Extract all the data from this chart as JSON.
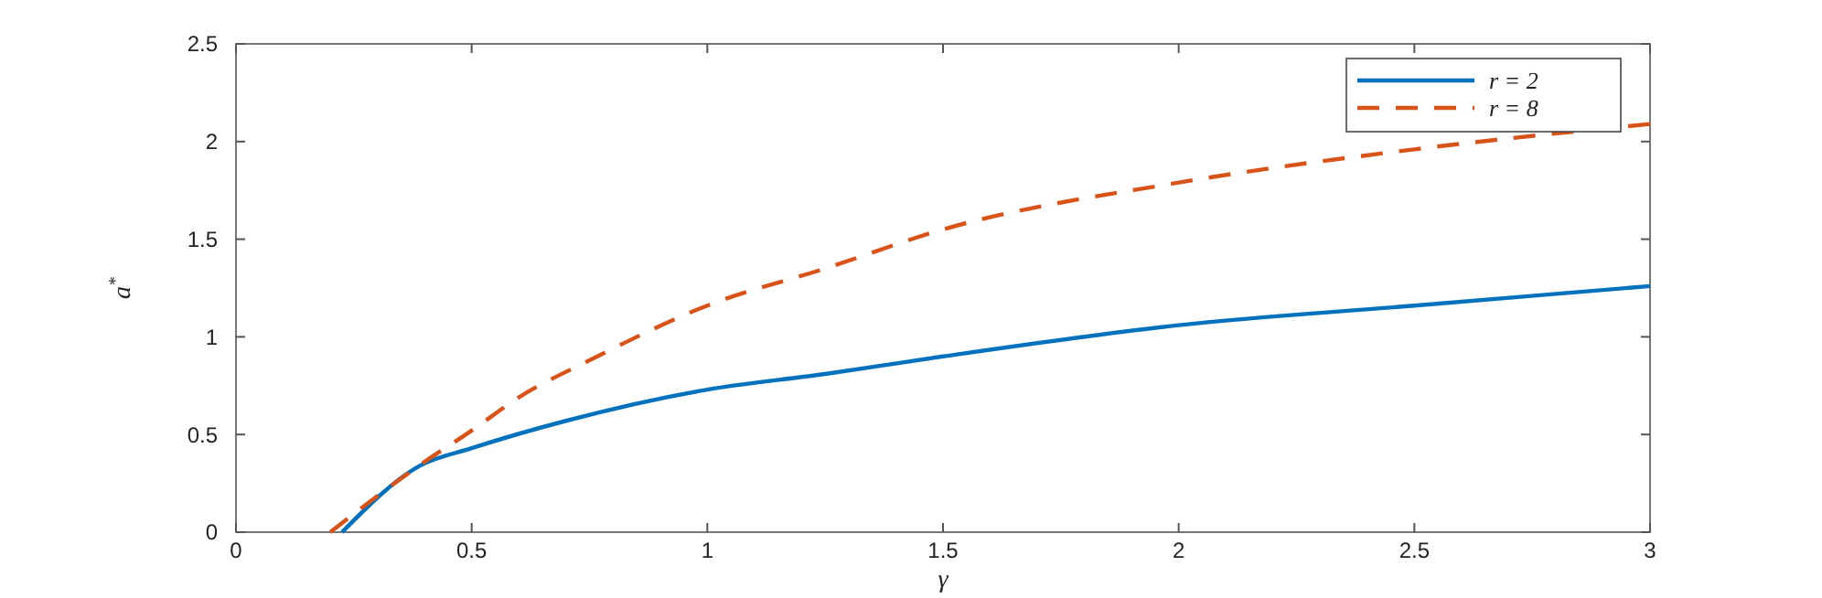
{
  "chart_data": {
    "type": "line",
    "xlabel": "γ",
    "ylabel": "a$^{*}$",
    "xlim": [
      0,
      3
    ],
    "ylim": [
      0,
      2.5
    ],
    "xticks": [
      0,
      0.5,
      1,
      1.5,
      2,
      2.5,
      3
    ],
    "yticks": [
      0,
      0.5,
      1,
      1.5,
      2,
      2.5
    ],
    "grid": false,
    "legend": "top right",
    "marker": "none",
    "series": [
      {
        "name": "r = 2",
        "color": "#0072bd",
        "line_style": "solid",
        "x": [
          0.225,
          0.39,
          0.5,
          0.7,
          1,
          1.25,
          1.5,
          2,
          2.5,
          3
        ],
        "values": [
          0,
          0.34,
          0.43,
          0.57,
          0.73,
          0.81,
          0.9,
          1.06,
          1.16,
          1.26
        ]
      },
      {
        "name": "r = 8",
        "color": "#d95319",
        "line_style": "dashed",
        "x": [
          0.2,
          0.4,
          0.5,
          0.6,
          0.75,
          1,
          1.25,
          1.5,
          2,
          2.5,
          3
        ],
        "values": [
          0,
          0.36,
          0.52,
          0.69,
          0.88,
          1.16,
          1.35,
          1.55,
          1.79,
          1.96,
          2.09
        ]
      }
    ]
  }
}
